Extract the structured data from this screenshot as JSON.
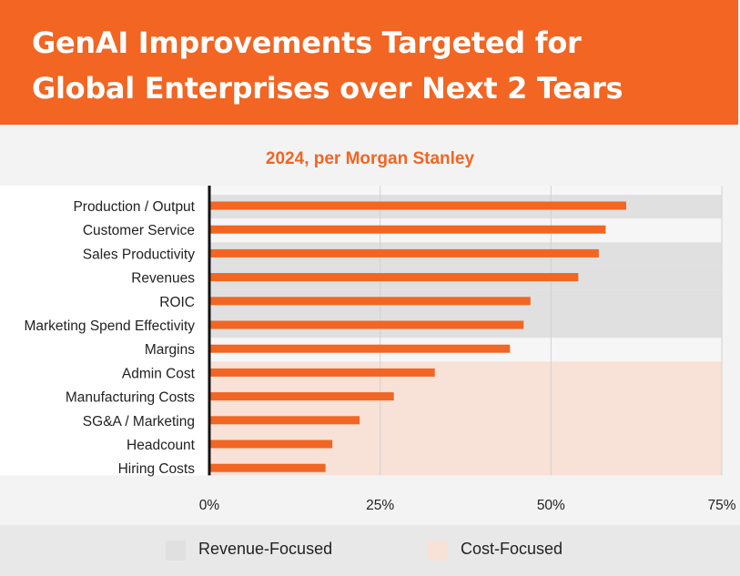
{
  "header": {
    "title_line1": "GenAI Improvements Targeted for",
    "title_line2": "Global Enterprises over Next 2 Tears",
    "subtitle": "2024, per  Morgan Stanley"
  },
  "colors": {
    "accent": "#f26522",
    "revenue_band": "#e0e0e0",
    "cost_band": "#f8e1d6"
  },
  "legend": {
    "revenue_label": "Revenue-Focused",
    "cost_label": "Cost-Focused"
  },
  "chart_data": {
    "type": "bar",
    "orientation": "horizontal",
    "title": "GenAI Improvements Targeted for Global Enterprises over Next 2 Tears",
    "subtitle": "2024, per  Morgan Stanley",
    "categories": [
      "Production / Output",
      "Customer Service",
      "Sales Productivity",
      "Revenues",
      "ROIC",
      "Marketing Spend Effectivity",
      "Margins",
      "Admin Cost",
      "Manufacturing Costs",
      "SG&A / Marketing",
      "Headcount",
      "Hiring Costs"
    ],
    "values": [
      61,
      58,
      57,
      54,
      47,
      46,
      44,
      33,
      27,
      22,
      18,
      17
    ],
    "focus": [
      "Revenue-Focused",
      "Revenue-Focused",
      "Revenue-Focused",
      "Revenue-Focused",
      "Revenue-Focused",
      "Revenue-Focused",
      "Revenue-Focused",
      "Cost-Focused",
      "Cost-Focused",
      "Cost-Focused",
      "Cost-Focused",
      "Cost-Focused"
    ],
    "band_shading": [
      "Revenue-Focused",
      "",
      "Revenue-Focused",
      "Revenue-Focused",
      "Revenue-Focused",
      "Revenue-Focused",
      "",
      "Cost-Focused",
      "Cost-Focused",
      "Cost-Focused",
      "Cost-Focused",
      "Cost-Focused"
    ],
    "xticks": [
      "0%",
      "25%",
      "50%",
      "75%"
    ],
    "xlim": [
      0,
      75
    ],
    "grid": true,
    "legend_position": "bottom"
  }
}
